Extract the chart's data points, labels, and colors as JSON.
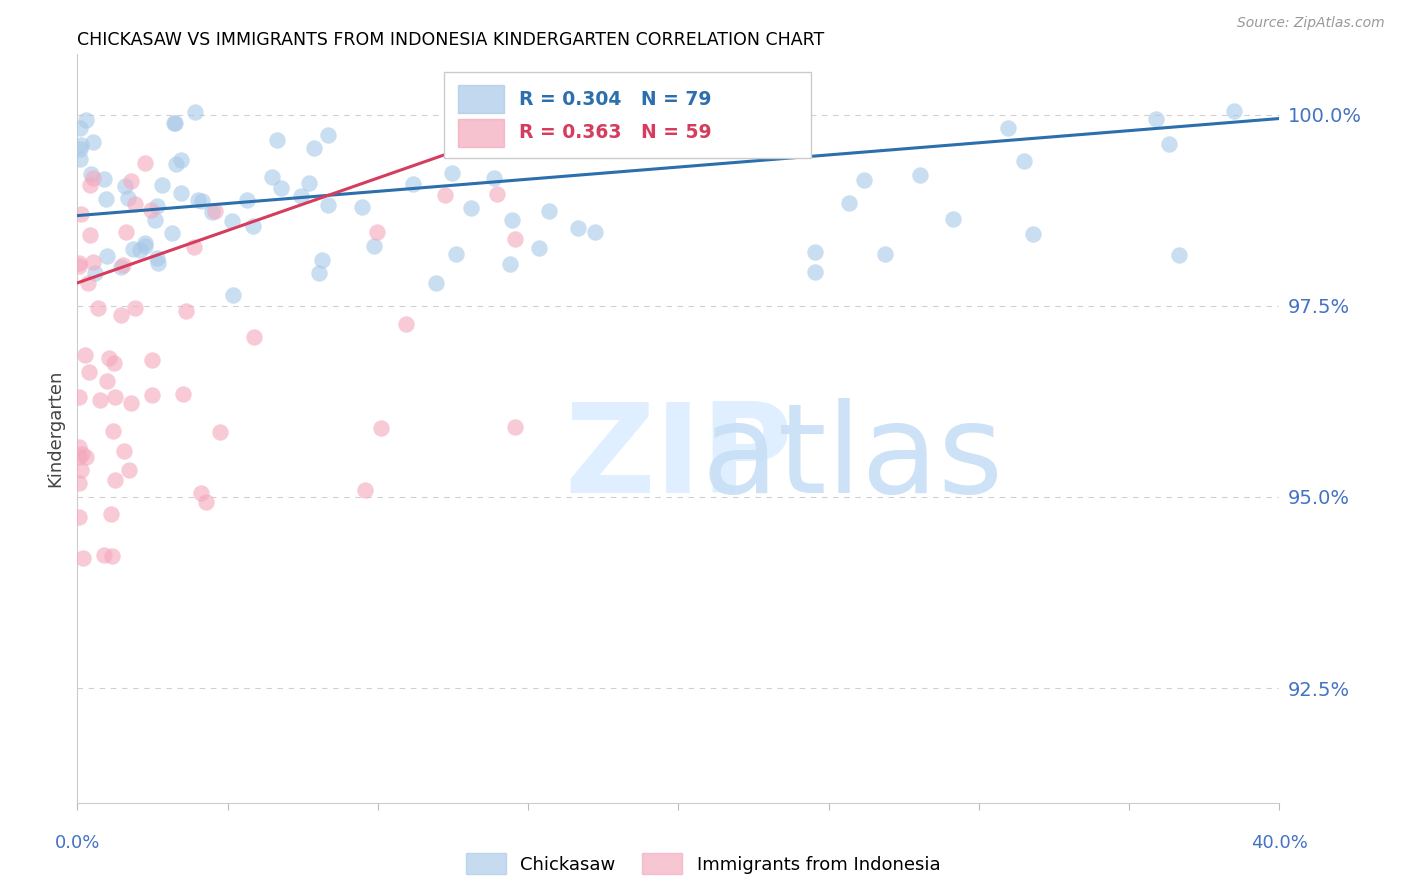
{
  "title": "CHICKASAW VS IMMIGRANTS FROM INDONESIA KINDERGARTEN CORRELATION CHART",
  "source": "Source: ZipAtlas.com",
  "ylabel": "Kindergarten",
  "xmin": 0.0,
  "xmax": 0.4,
  "ymin": 0.91,
  "ymax": 1.008,
  "yticks": [
    0.925,
    0.95,
    0.975,
    1.0
  ],
  "ytick_labels": [
    "92.5%",
    "95.0%",
    "97.5%",
    "100.0%"
  ],
  "blue_color": "#a8c8e8",
  "pink_color": "#f4a8bc",
  "blue_line_color": "#2c6fad",
  "pink_line_color": "#d63c5e",
  "axis_label_color": "#4472c4",
  "grid_color": "#d0d0d0",
  "blue_line_x": [
    0.0,
    0.4
  ],
  "blue_line_y": [
    0.9868,
    0.9995
  ],
  "pink_line_x": [
    0.0,
    0.175
  ],
  "pink_line_y": [
    0.978,
    1.002
  ]
}
